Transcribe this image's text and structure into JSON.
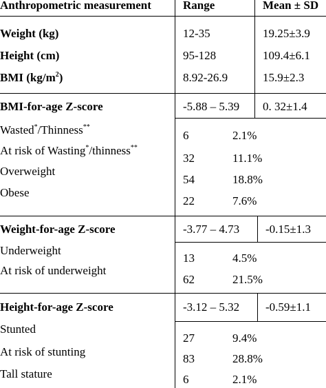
{
  "header": {
    "measurement": "Anthropometric measurement",
    "range": "Range",
    "mean_sd": "Mean ± SD"
  },
  "basic": {
    "weight": {
      "label": "Weight (kg)",
      "range": "12-35",
      "mean": "19.25±3.9"
    },
    "height": {
      "label": "Height (cm)",
      "range": "95-128",
      "mean": "109.4±6.1"
    },
    "bmi": {
      "label_prefix": "BMI (kg/m",
      "label_sup": "2",
      "label_suffix": ")",
      "range": "8.92-26.9",
      "mean": "15.9±2.3"
    }
  },
  "bmi_for_age": {
    "title": "BMI-for-age Z-score",
    "range": "-5.88 – 5.39",
    "mean": "0. 32±1.4",
    "rows": [
      {
        "p1": "Wasted",
        "s1": "*",
        "p2": "/Thinness",
        "s2": "**",
        "n": "6",
        "pct": "2.1%"
      },
      {
        "p1": "At risk of Wasting",
        "s1": "*",
        "p2": "/thinness",
        "s2": "**",
        "n": "32",
        "pct": "11.1%"
      },
      {
        "label": "Overweight",
        "n": "54",
        "pct": "18.8%"
      },
      {
        "label": "Obese",
        "n": "22",
        "pct": "7.6%"
      }
    ]
  },
  "weight_for_age": {
    "title": "Weight-for-age Z-score",
    "range": "-3.77 – 4.73",
    "mean": "-0.15±1.3",
    "rows": [
      {
        "label": "Underweight",
        "n": "13",
        "pct": "4.5%"
      },
      {
        "label": "At risk of underweight",
        "n": "62",
        "pct": "21.5%"
      }
    ]
  },
  "height_for_age": {
    "title": "Height-for-age Z-score",
    "range": "-3.12 – 5.32",
    "mean": "-0.59±1.1",
    "rows": [
      {
        "label": "Stunted",
        "n": "27",
        "pct": "9.4%"
      },
      {
        "label": "At risk of stunting",
        "n": "83",
        "pct": "28.8%"
      },
      {
        "label": "Tall stature",
        "n": "6",
        "pct": "2.1%"
      }
    ]
  }
}
